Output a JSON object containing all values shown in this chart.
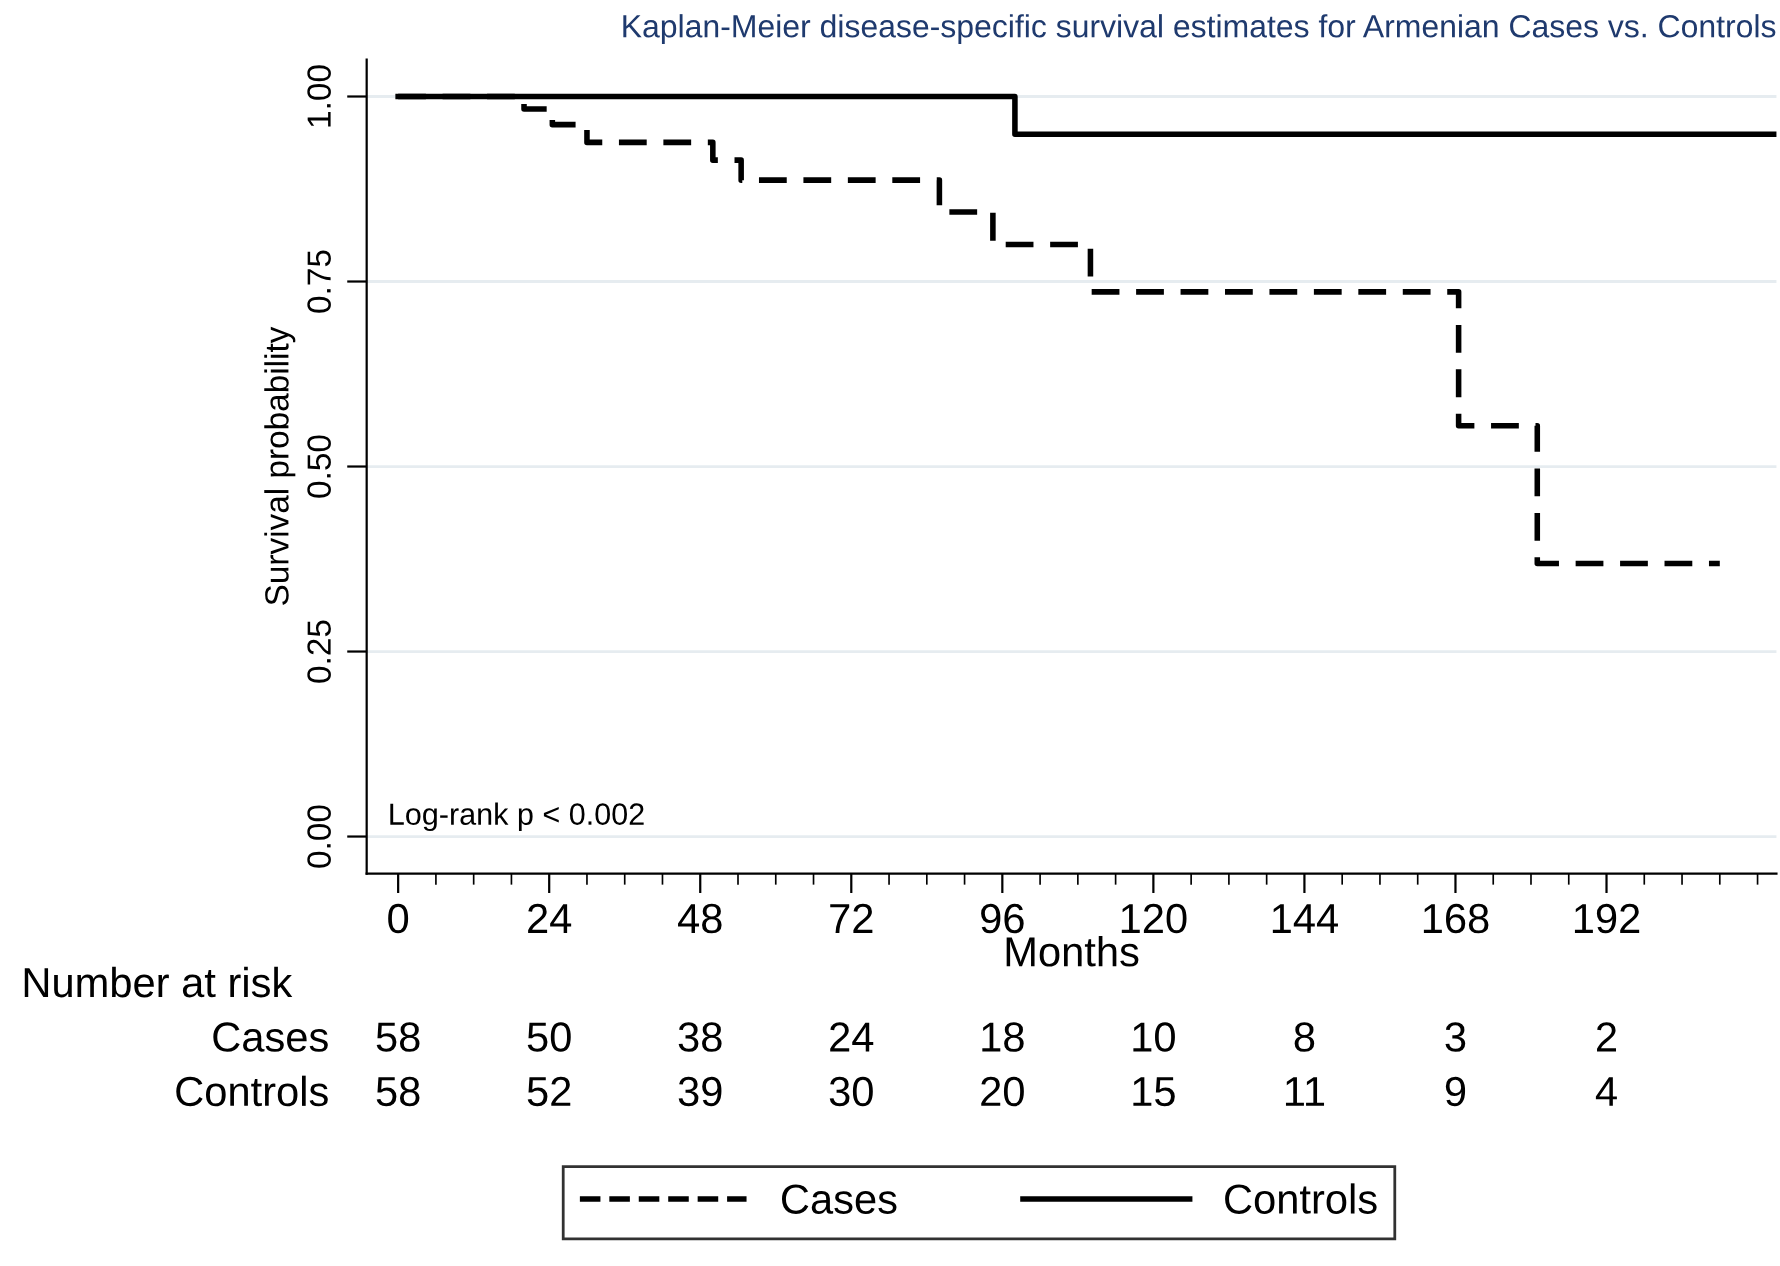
{
  "chart_data": {
    "type": "step",
    "title": "Kaplan-Meier disease-specific survival estimates for Armenian Cases vs. Controls",
    "xlabel": "Months",
    "ylabel": "Survival probability",
    "series": [
      {
        "name": "Cases",
        "color": "#000000",
        "line_style": "dashed",
        "x": [
          0,
          20,
          24.5,
          30,
          50,
          54.5,
          86,
          94.5,
          110,
          168.5,
          181,
          210
        ],
        "values": [
          1.0,
          0.983,
          0.962,
          0.938,
          0.914,
          0.887,
          0.844,
          0.8,
          0.736,
          0.555,
          0.369,
          0.369
        ]
      },
      {
        "name": "Controls",
        "color": "#000000",
        "line_style": "solid",
        "x": [
          0,
          98,
          219
        ],
        "values": [
          1.0,
          0.949,
          0.949
        ]
      }
    ],
    "xlim": [
      -5,
      219
    ],
    "xticks": [
      0,
      24,
      48,
      72,
      96,
      120,
      144,
      168,
      192
    ],
    "ylim": [
      -0.05,
      1.05
    ],
    "yticks": [
      {
        "value": 0,
        "label": "0.00"
      },
      {
        "value": 0.25,
        "label": "0.25"
      },
      {
        "value": 0.5,
        "label": "0.50"
      },
      {
        "value": 0.75,
        "label": "0.75"
      },
      {
        "value": 1,
        "label": "1.00"
      }
    ],
    "grid": "y",
    "legend": "bottom",
    "marker": "none",
    "annotations": [
      "Log-rank p < 0.002",
      "Number at risk",
      "Cases",
      "58",
      "50",
      "38",
      "24",
      "18",
      "10",
      "8",
      "3",
      "2",
      "Controls",
      "58",
      "52",
      "39",
      "30",
      "20",
      "15",
      "11",
      "9",
      "4"
    ]
  }
}
